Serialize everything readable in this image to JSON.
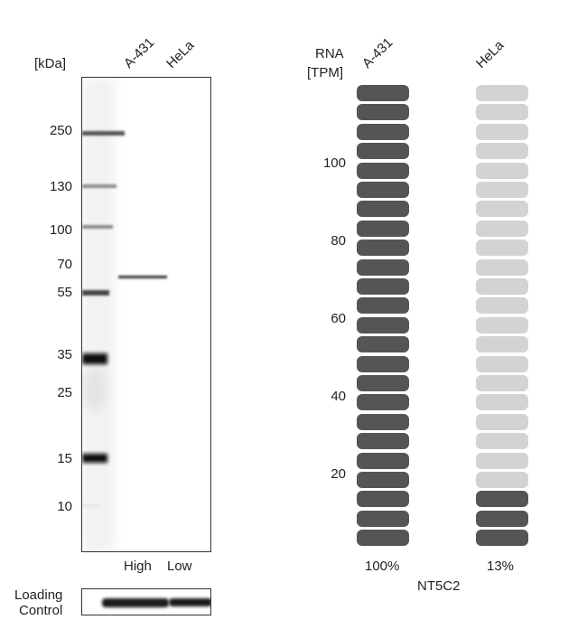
{
  "blot": {
    "unit_label": "[kDa]",
    "lanes": [
      "A-431",
      "HeLa"
    ],
    "markers": [
      "250",
      "130",
      "100",
      "70",
      "55",
      "35",
      "25",
      "15",
      "10"
    ],
    "expression_labels": [
      "High",
      "Low"
    ],
    "loading_control": [
      "Loading",
      "Control"
    ]
  },
  "rna": {
    "axis_title": [
      "RNA",
      "[TPM]"
    ],
    "ticks": [
      "100",
      "80",
      "60",
      "40",
      "20"
    ],
    "cell_lines": [
      "A-431",
      "HeLa"
    ],
    "percentages": [
      "100%",
      "13%"
    ],
    "gene": "NT5C2",
    "segments_total": 24,
    "filled_segments": [
      24,
      3
    ],
    "colors": {
      "filled": "#555555",
      "empty": "#d3d3d3"
    }
  }
}
